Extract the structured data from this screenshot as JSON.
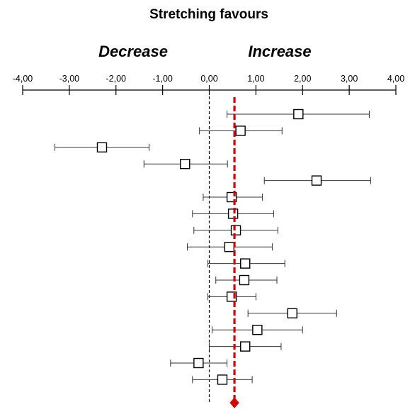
{
  "chart_data": {
    "type": "forest",
    "title": "Stretching favours",
    "direction_labels": {
      "left": "Decrease",
      "right": "Increase"
    },
    "xlim": [
      -4,
      4
    ],
    "x_ticks": [
      -4,
      -3,
      -2,
      -1,
      0,
      1,
      2,
      3,
      4
    ],
    "x_tick_labels": [
      "-4,00",
      "-3,00",
      "-2,00",
      "-1,00",
      "0,00",
      "1,00",
      "2,00",
      "3,00",
      "4,00"
    ],
    "reference_line": 0,
    "pooled": {
      "estimate": 0.54,
      "color": "#d40000"
    },
    "studies": [
      {
        "estimate": 1.91,
        "lower": 0.38,
        "upper": 3.43
      },
      {
        "estimate": 0.67,
        "lower": -0.21,
        "upper": 1.56
      },
      {
        "estimate": -2.3,
        "lower": -3.31,
        "upper": -1.29
      },
      {
        "estimate": -0.52,
        "lower": -1.4,
        "upper": 0.39
      },
      {
        "estimate": 2.3,
        "lower": 1.18,
        "upper": 3.46
      },
      {
        "estimate": 0.48,
        "lower": -0.13,
        "upper": 1.14
      },
      {
        "estimate": 0.51,
        "lower": -0.36,
        "upper": 1.38
      },
      {
        "estimate": 0.57,
        "lower": -0.33,
        "upper": 1.47
      },
      {
        "estimate": 0.43,
        "lower": -0.47,
        "upper": 1.35
      },
      {
        "estimate": 0.77,
        "lower": -0.03,
        "upper": 1.62
      },
      {
        "estimate": 0.75,
        "lower": 0.14,
        "upper": 1.45
      },
      {
        "estimate": 0.48,
        "lower": -0.03,
        "upper": 1.0
      },
      {
        "estimate": 1.78,
        "lower": 0.83,
        "upper": 2.73
      },
      {
        "estimate": 1.03,
        "lower": 0.06,
        "upper": 2.0
      },
      {
        "estimate": 0.77,
        "lower": 0.0,
        "upper": 1.54
      },
      {
        "estimate": -0.23,
        "lower": -0.83,
        "upper": 0.38
      },
      {
        "estimate": 0.28,
        "lower": -0.36,
        "upper": 0.92
      }
    ]
  }
}
